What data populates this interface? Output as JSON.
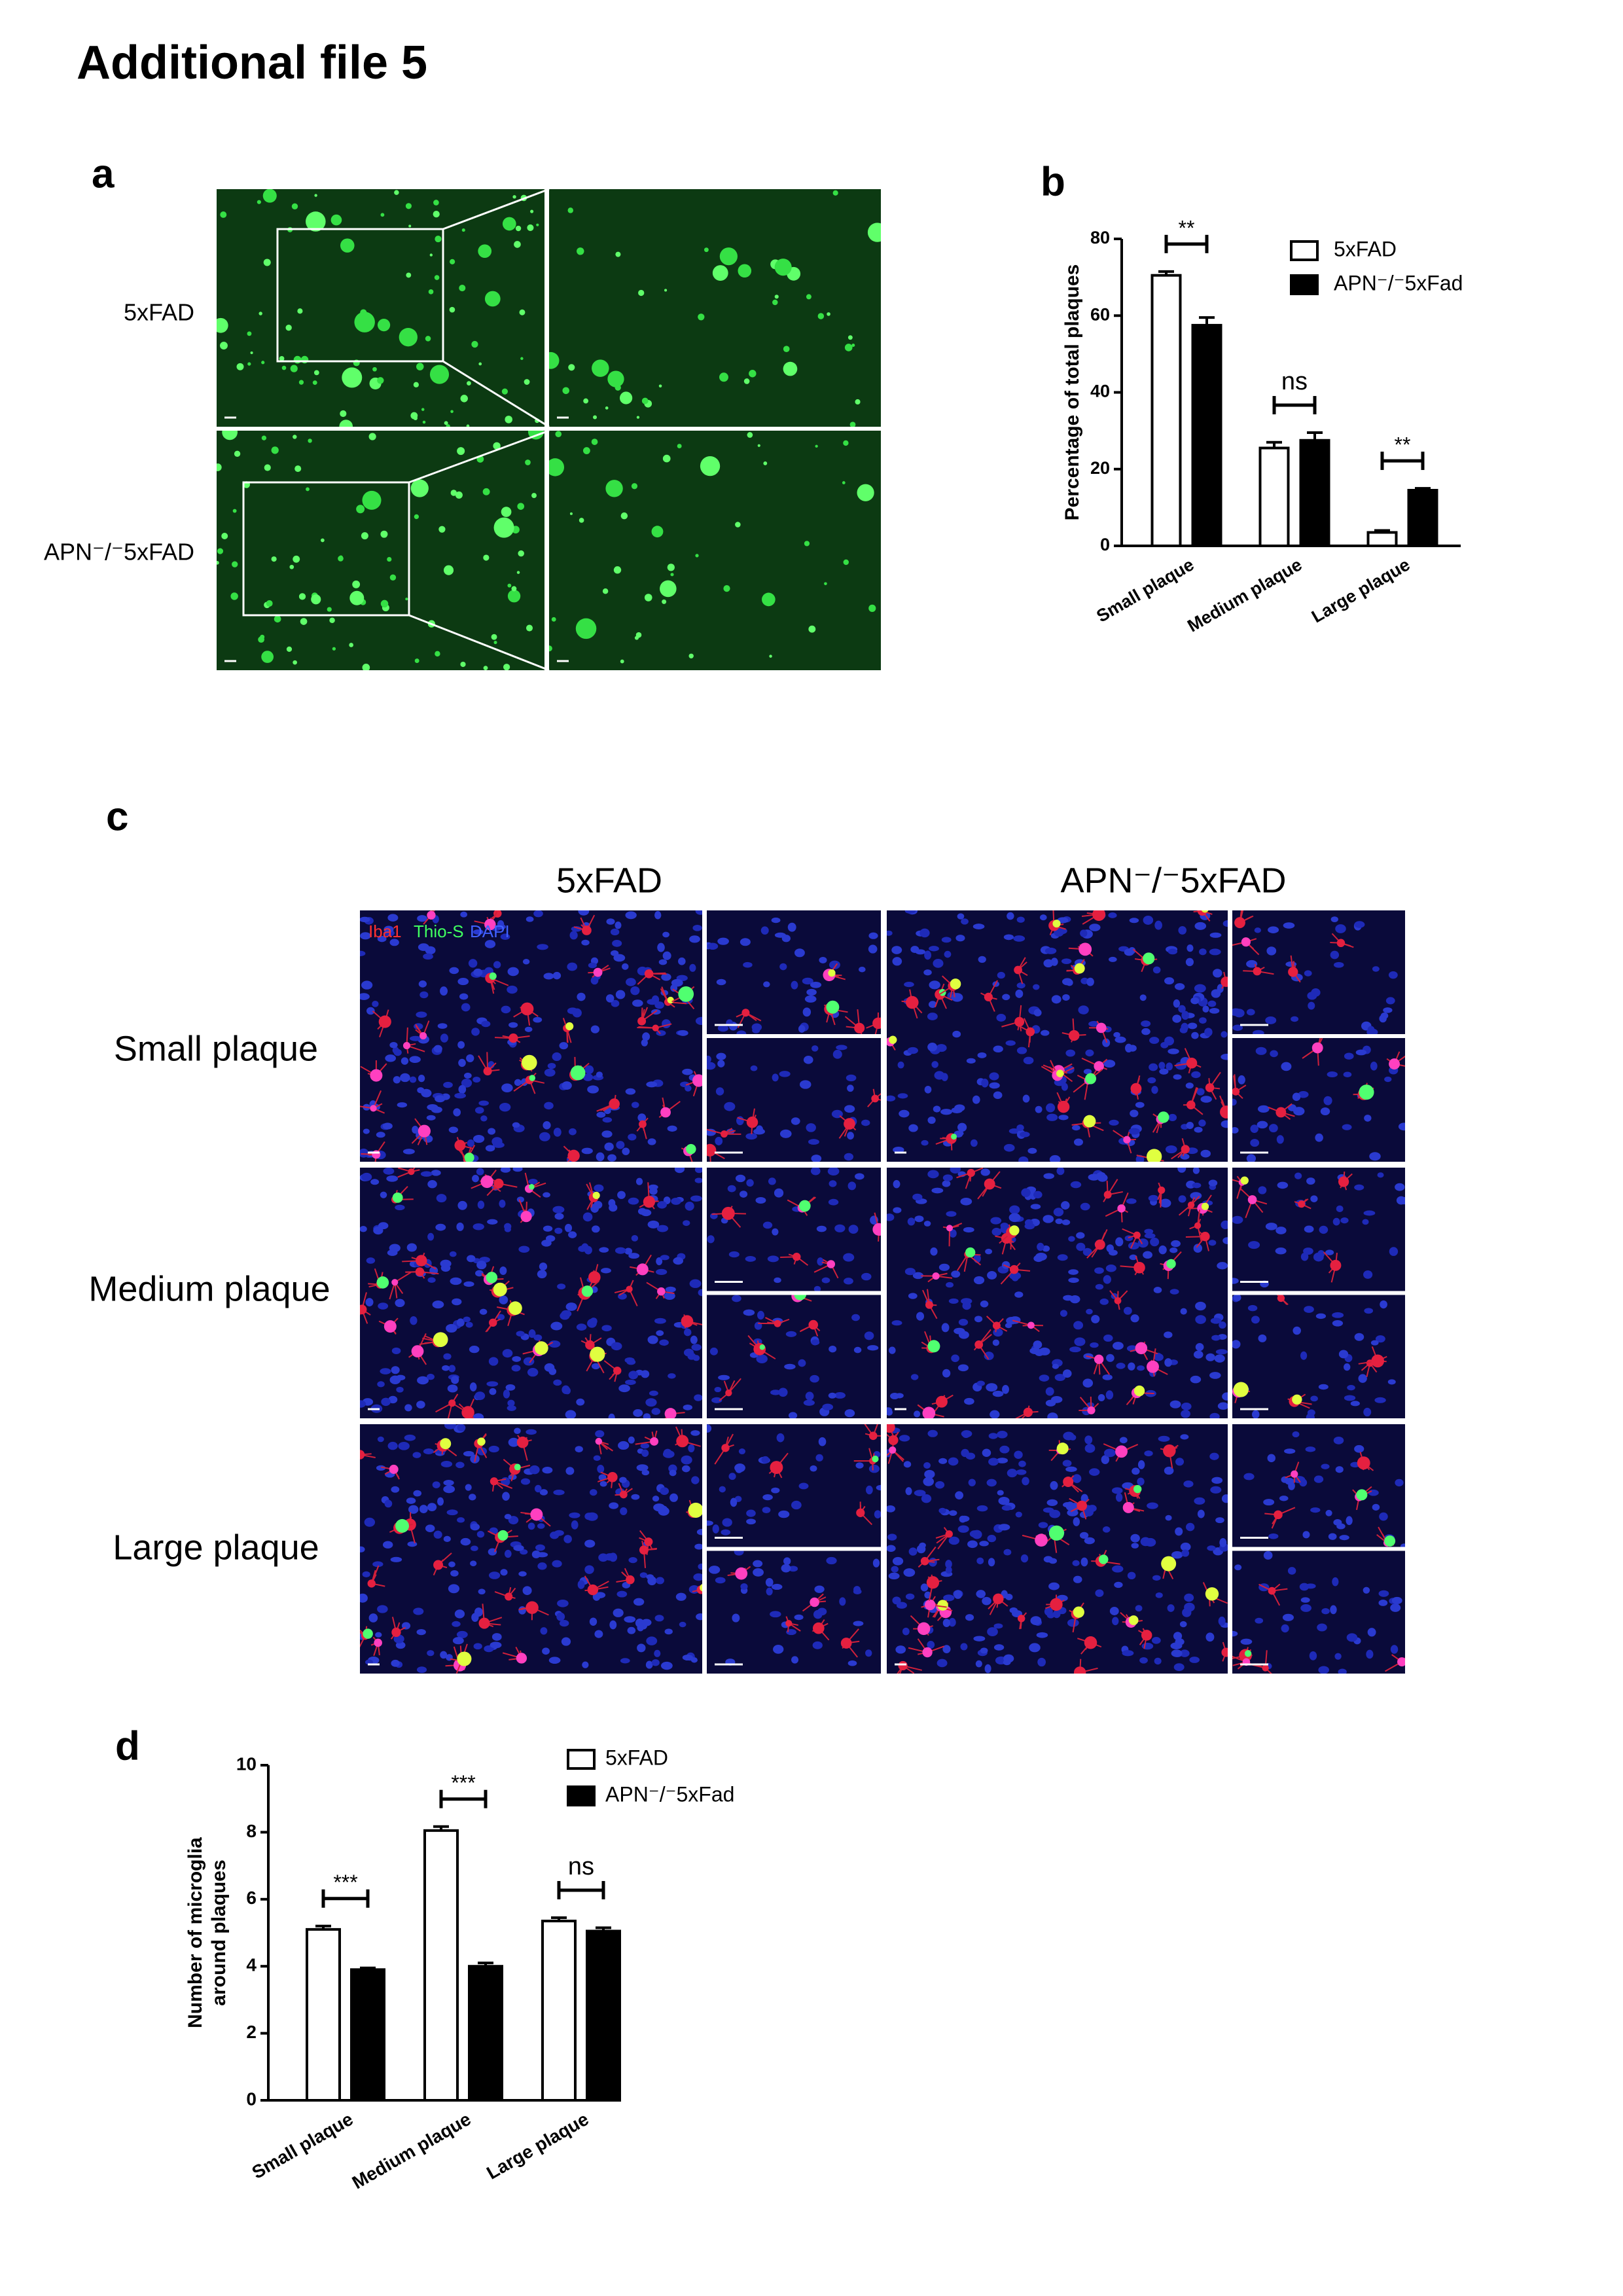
{
  "title": "Additional file 5",
  "panel_a": {
    "label": "a",
    "rows": [
      "5xFAD",
      "APN⁻/⁻5xFAD"
    ]
  },
  "panel_c": {
    "label": "c",
    "columns": [
      "5xFAD",
      "APN⁻/⁻5xFAD"
    ],
    "rows": [
      "Small plaque",
      "Medium plaque",
      "Large plaque"
    ],
    "stains": [
      {
        "name": "Iba1",
        "color": "#ff3030"
      },
      {
        "name": "Thio-S",
        "color": "#40ff60"
      },
      {
        "name": "DAPI",
        "color": "#4060ff"
      }
    ]
  },
  "chart_data": [
    {
      "type": "bar",
      "panel": "b",
      "y_label": "Percentage of total plaques",
      "categories": [
        "Small plaque",
        "Medium plaque",
        "Large plaque"
      ],
      "series": [
        {
          "name": "5xFAD",
          "color": "#ffffff",
          "values": [
            70.5,
            25.5,
            3.5
          ],
          "errors": [
            1,
            1.5,
            0.5
          ]
        },
        {
          "name": "APN⁻/⁻5xFad",
          "color": "#000000",
          "values": [
            57.5,
            27.5,
            14.5
          ],
          "errors": [
            2,
            2,
            0.5
          ]
        }
      ],
      "significance": [
        "**",
        "ns",
        "**"
      ],
      "ylim": [
        0,
        80
      ],
      "yticks": [
        0,
        20,
        40,
        60,
        80
      ]
    },
    {
      "type": "bar",
      "panel": "d",
      "y_label": [
        "Number of microglia",
        "around plaques"
      ],
      "categories": [
        "Small plaque",
        "Medium plaque",
        "Large plaque"
      ],
      "series": [
        {
          "name": "5xFAD",
          "color": "#ffffff",
          "values": [
            5.1,
            8.05,
            5.35
          ],
          "errors": [
            0.1,
            0.12,
            0.1
          ]
        },
        {
          "name": "APN⁻/⁻5xFad",
          "color": "#000000",
          "values": [
            3.9,
            4.0,
            5.05
          ],
          "errors": [
            0.05,
            0.1,
            0.1
          ]
        }
      ],
      "significance": [
        "***",
        "***",
        "ns"
      ],
      "ylim": [
        0,
        10
      ],
      "yticks": [
        0,
        2,
        4,
        6,
        8,
        10
      ]
    }
  ]
}
